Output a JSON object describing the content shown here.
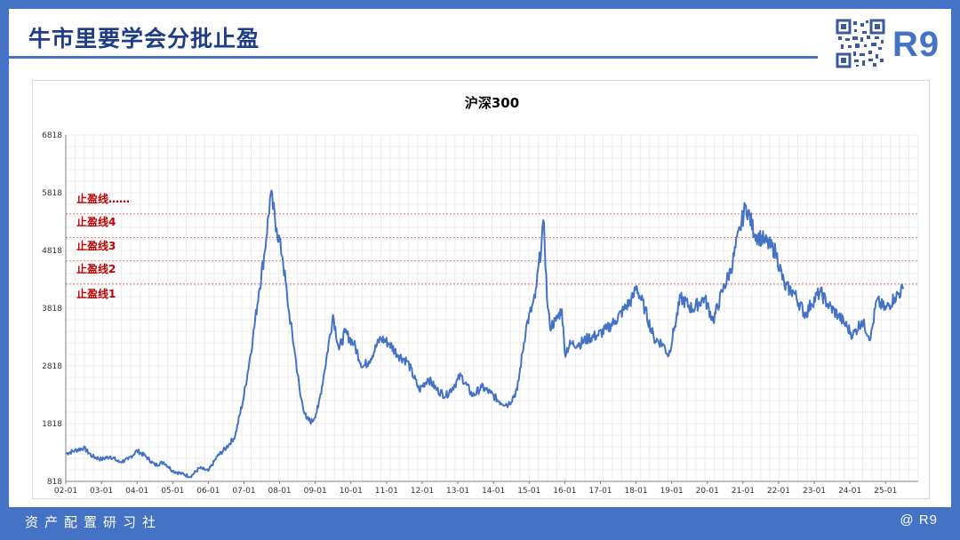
{
  "slide": {
    "title": "牛市里要学会分批止盈",
    "logo_text": "R9",
    "footer_left": "资产配置研习社",
    "footer_right": "@ R9"
  },
  "colors": {
    "brand_blue": "#4472c4",
    "title_blue": "#1f3c88",
    "line": "#4472c4",
    "stop_line": "#e06060",
    "stop_label": "#c00000"
  },
  "icons": {
    "qr": "qr-code-icon"
  },
  "chart_data": {
    "type": "line",
    "title": "沪深300",
    "xlabel": "",
    "ylabel": "",
    "ylim": [
      818,
      6818
    ],
    "yticks": [
      818,
      1818,
      2818,
      3818,
      4818,
      5818,
      6818
    ],
    "xticks": [
      "02-01",
      "03-01",
      "04-01",
      "05-01",
      "06-01",
      "07-01",
      "08-01",
      "09-01",
      "10-01",
      "11-01",
      "12-01",
      "13-01",
      "14-01",
      "15-01",
      "16-01",
      "17-01",
      "18-01",
      "19-01",
      "20-01",
      "21-01",
      "22-01",
      "23-01",
      "24-01",
      "25-01"
    ],
    "grid": true,
    "series": [
      {
        "x": [
          "2002-01",
          "2002-04",
          "2002-07",
          "2002-10",
          "2003-01",
          "2003-04",
          "2003-07",
          "2003-10",
          "2004-01",
          "2004-04",
          "2004-07",
          "2004-10",
          "2005-01",
          "2005-04",
          "2005-07",
          "2005-10",
          "2006-01",
          "2006-04",
          "2006-07",
          "2006-10",
          "2007-01",
          "2007-04",
          "2007-06",
          "2007-08",
          "2007-10",
          "2007-12",
          "2008-02",
          "2008-04",
          "2008-06",
          "2008-08",
          "2008-10",
          "2008-12",
          "2009-02",
          "2009-04",
          "2009-07",
          "2009-09",
          "2009-11",
          "2010-02",
          "2010-05",
          "2010-07",
          "2010-11",
          "2011-02",
          "2011-05",
          "2011-08",
          "2011-12",
          "2012-03",
          "2012-06",
          "2012-09",
          "2012-12",
          "2013-02",
          "2013-06",
          "2013-09",
          "2013-12",
          "2014-03",
          "2014-06",
          "2014-09",
          "2014-12",
          "2015-03",
          "2015-06",
          "2015-07",
          "2015-08",
          "2015-10",
          "2015-12",
          "2016-01",
          "2016-03",
          "2016-06",
          "2016-09",
          "2016-12",
          "2017-03",
          "2017-06",
          "2017-09",
          "2017-12",
          "2018-01",
          "2018-04",
          "2018-07",
          "2018-10",
          "2018-12",
          "2019-02",
          "2019-04",
          "2019-08",
          "2019-12",
          "2020-03",
          "2020-06",
          "2020-09",
          "2020-12",
          "2021-02",
          "2021-05",
          "2021-08",
          "2021-12",
          "2022-03",
          "2022-06",
          "2022-10",
          "2022-12",
          "2023-03",
          "2023-06",
          "2023-09",
          "2023-12",
          "2024-02",
          "2024-05",
          "2024-08",
          "2024-10",
          "2025-01",
          "2025-04",
          "2025-07"
        ],
        "values": [
          1300,
          1350,
          1400,
          1250,
          1200,
          1250,
          1150,
          1200,
          1350,
          1250,
          1100,
          1150,
          1000,
          950,
          900,
          1050,
          1000,
          1250,
          1400,
          1600,
          2300,
          3300,
          4100,
          4800,
          5800,
          5200,
          4700,
          3800,
          3100,
          2300,
          1900,
          1850,
          2100,
          2700,
          3700,
          3100,
          3400,
          3200,
          2800,
          2900,
          3300,
          3200,
          3000,
          2900,
          2400,
          2600,
          2400,
          2300,
          2500,
          2650,
          2300,
          2450,
          2350,
          2200,
          2150,
          2400,
          3500,
          4000,
          5300,
          4000,
          3500,
          3600,
          3800,
          3050,
          3200,
          3200,
          3300,
          3350,
          3450,
          3600,
          3800,
          4000,
          4200,
          3800,
          3300,
          3200,
          3000,
          3500,
          4000,
          3800,
          4000,
          3600,
          4100,
          4500,
          5200,
          5600,
          5100,
          5000,
          4800,
          4200,
          4100,
          3700,
          3900,
          4100,
          3850,
          3700,
          3500,
          3350,
          3600,
          3300,
          3950,
          3800,
          4000,
          4150
        ]
      }
    ],
    "stop_levels": [
      {
        "label": "止盈线……",
        "value": 5452
      },
      {
        "label": "止盈线4",
        "value": 5043
      },
      {
        "label": "止盈线3",
        "value": 4637
      },
      {
        "label": "止盈线2",
        "value": 4236
      },
      {
        "label": "止盈线1",
        "value": null
      }
    ]
  }
}
